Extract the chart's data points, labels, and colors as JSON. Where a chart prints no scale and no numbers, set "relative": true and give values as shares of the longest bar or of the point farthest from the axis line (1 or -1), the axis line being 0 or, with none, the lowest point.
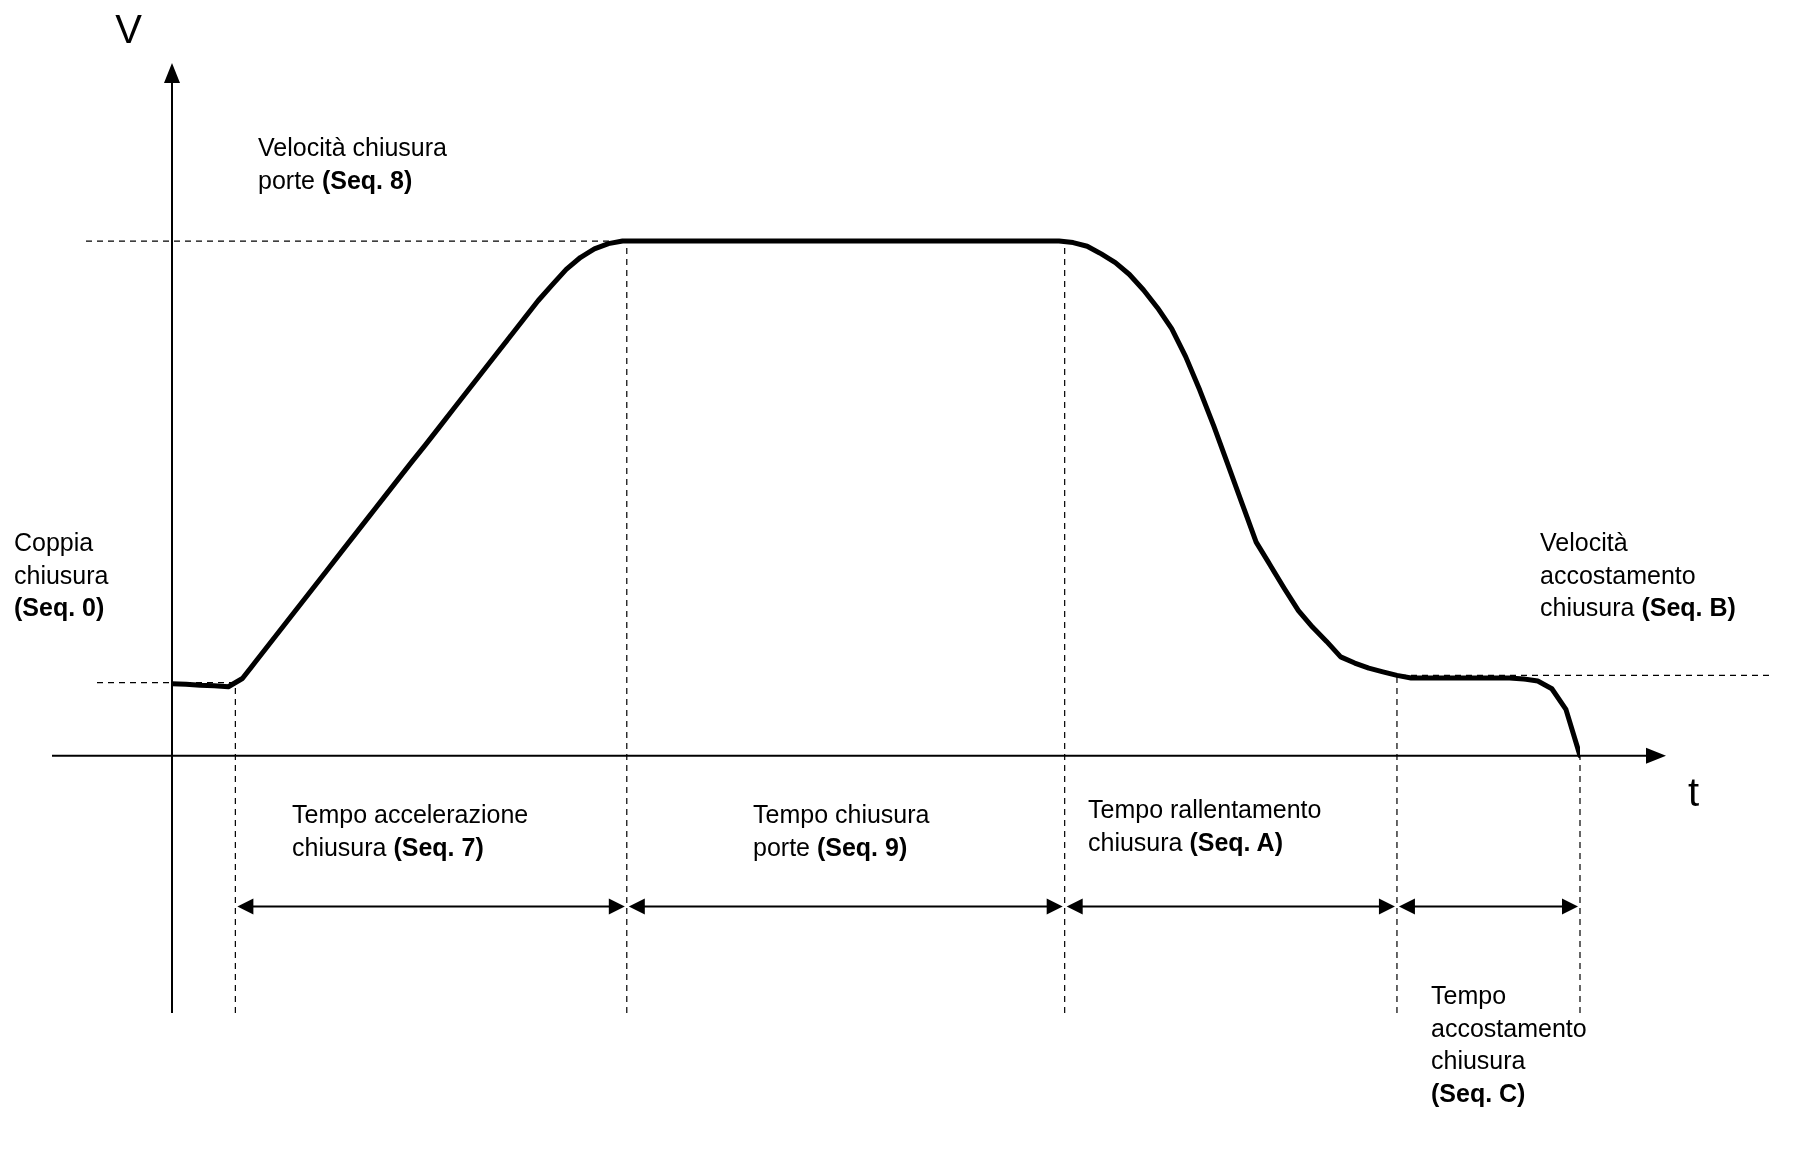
{
  "chart_data": {
    "type": "line",
    "relative": true,
    "xlabel": "t",
    "ylabel": "V",
    "marker": "none",
    "line_style": "solid",
    "categories": [
      null,
      null,
      null,
      null,
      null,
      null,
      null,
      null,
      null,
      null,
      null,
      null,
      null,
      null,
      null,
      null,
      null,
      null,
      null,
      null,
      null,
      null,
      null,
      null,
      null,
      null,
      null,
      null,
      null,
      null,
      null,
      null,
      null,
      null,
      null,
      null,
      null,
      null,
      null,
      null,
      null,
      null,
      null,
      null,
      null,
      null,
      null,
      null,
      null,
      null,
      null,
      null,
      null,
      null,
      null,
      null,
      null,
      null,
      null,
      null,
      null,
      null,
      null,
      null,
      null,
      null,
      null,
      null,
      null,
      null,
      null,
      null,
      null,
      null,
      null,
      null,
      null,
      null,
      null,
      null,
      null,
      null,
      null,
      null,
      null,
      null,
      null,
      null,
      null,
      null,
      null,
      null,
      null,
      null,
      null,
      null,
      null,
      null,
      null,
      null,
      null
    ],
    "series": [
      {
        "color": "#000000",
        "values": [
          0.14,
          0.139,
          0.137,
          0.136,
          0.134,
          0.15,
          0.185,
          0.22,
          0.255,
          0.29,
          0.325,
          0.36,
          0.395,
          0.43,
          0.465,
          0.5,
          0.535,
          0.57,
          0.604,
          0.639,
          0.674,
          0.709,
          0.744,
          0.779,
          0.814,
          0.849,
          0.884,
          0.915,
          0.945,
          0.968,
          0.985,
          0.995,
          1,
          1,
          1,
          1,
          1,
          1,
          1,
          1,
          1,
          1,
          1,
          1,
          1,
          1,
          1,
          1,
          1,
          1,
          1,
          1,
          1,
          1,
          1,
          1,
          1,
          1,
          1,
          1,
          1,
          1,
          1,
          1,
          0.997,
          0.99,
          0.975,
          0.958,
          0.935,
          0.905,
          0.87,
          0.83,
          0.775,
          0.71,
          0.64,
          0.565,
          0.49,
          0.415,
          0.37,
          0.325,
          0.282,
          0.25,
          0.222,
          0.192,
          0.18,
          0.17,
          0.163,
          0.156,
          0.151,
          0.151,
          0.151,
          0.151,
          0.151,
          0.151,
          0.151,
          0.151,
          0.149,
          0.145,
          0.13,
          0.09,
          0
        ]
      }
    ],
    "annotations": [
      "Velocità chiusura porte (Seq. 8)",
      "Coppia chiusura (Seq. 0)",
      "Tempo accelerazione chiusura (Seq. 7)",
      "Tempo chiusura porte (Seq. 9)",
      "Tempo rallentamento chiusura (Seq. A)",
      "Velocità accostamento chiusura (Seq. B)",
      "Tempo accostamento chiusura (Seq. C)"
    ]
  }
}
